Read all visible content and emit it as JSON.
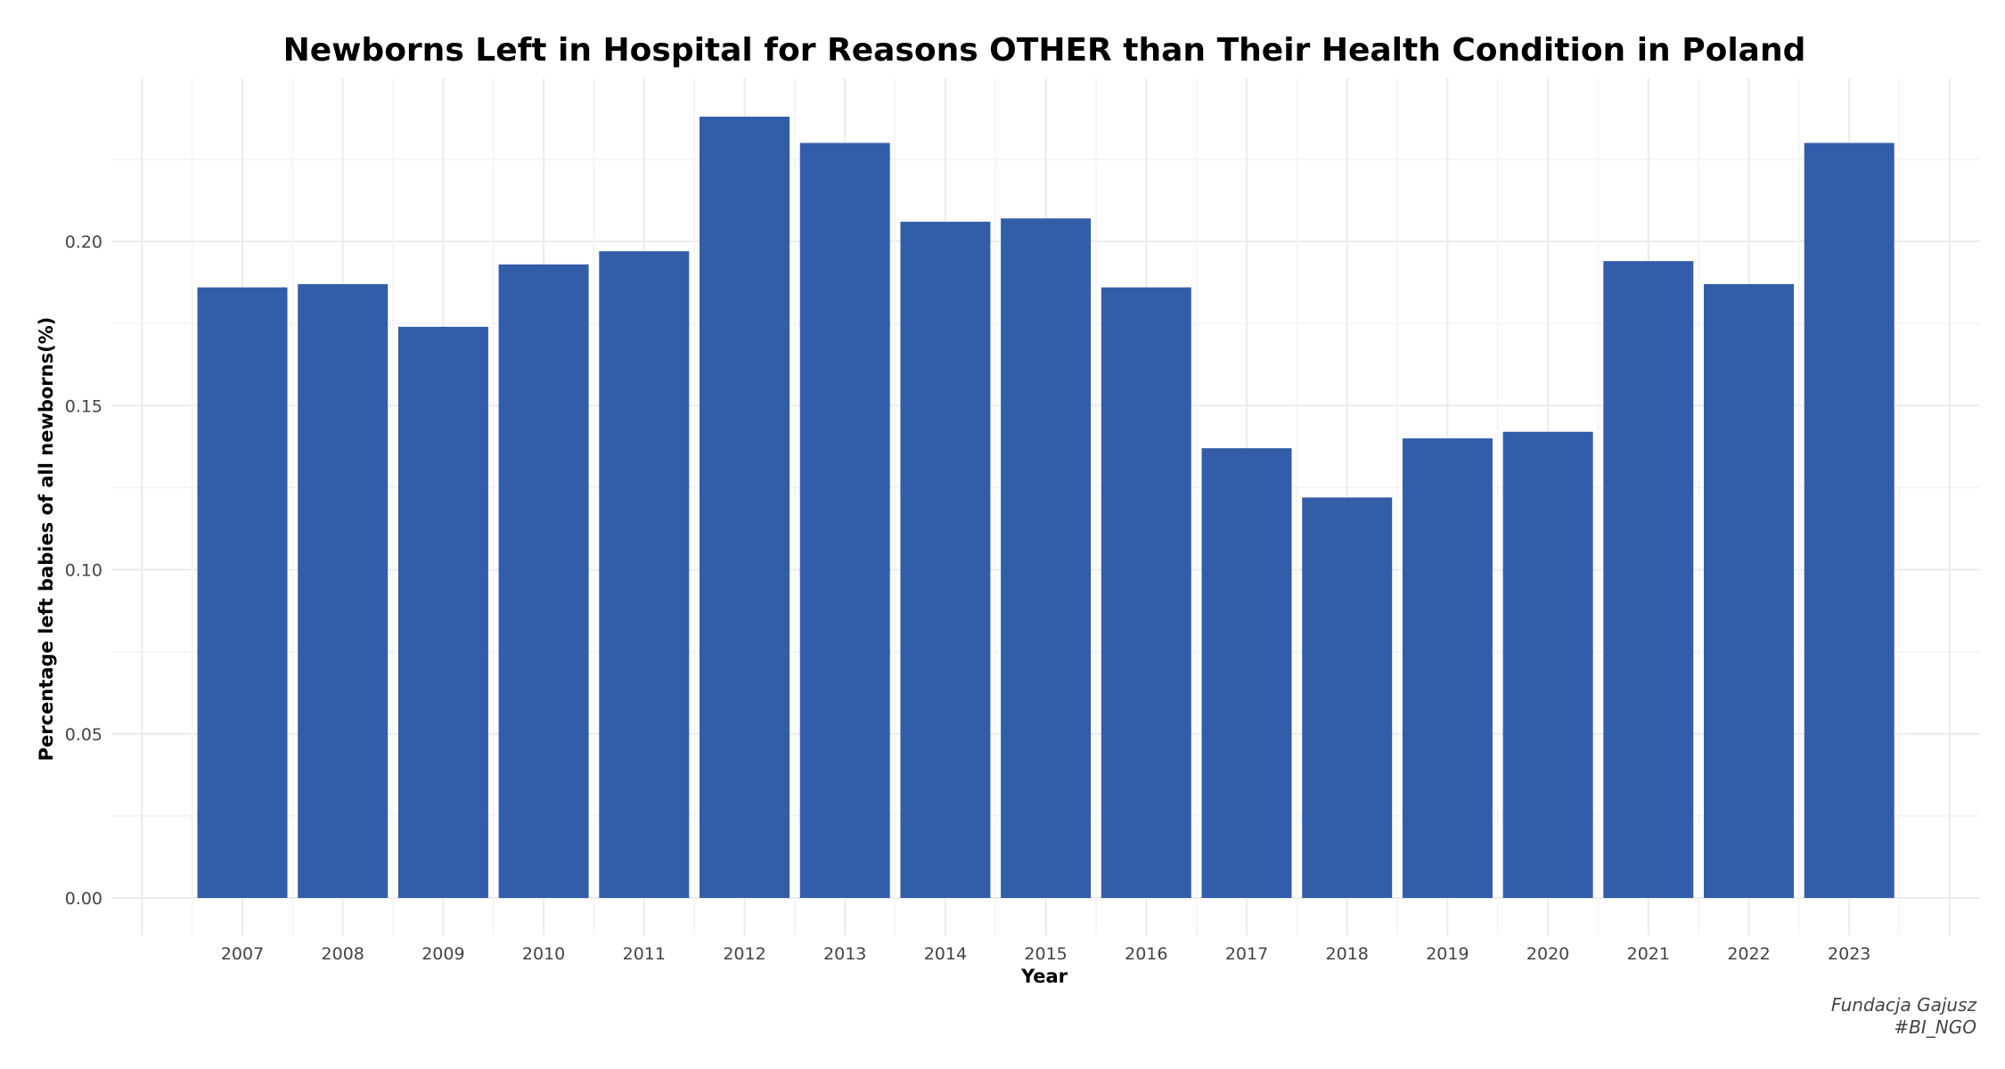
{
  "chart_data": {
    "type": "bar",
    "title": "Newborns Left in Hospital for Reasons OTHER than Their Health Condition in Poland",
    "xlabel": "Year",
    "ylabel": "Percentage left babies of all newborns(%)",
    "categories": [
      "2007",
      "2008",
      "2009",
      "2010",
      "2011",
      "2012",
      "2013",
      "2014",
      "2015",
      "2016",
      "2017",
      "2018",
      "2019",
      "2020",
      "2021",
      "2022",
      "2023"
    ],
    "values": [
      0.186,
      0.187,
      0.174,
      0.193,
      0.197,
      0.238,
      0.23,
      0.206,
      0.207,
      0.186,
      0.137,
      0.122,
      0.14,
      0.142,
      0.194,
      0.187,
      0.23
    ],
    "ylim": [
      0,
      0.25
    ],
    "yticks": [
      "0.00",
      "0.05",
      "0.10",
      "0.15",
      "0.20"
    ],
    "bar_color": "#325DA9",
    "grid": true,
    "legend": "none",
    "caption": [
      "Fundacja Gajusz",
      "#BI_NGO"
    ]
  }
}
